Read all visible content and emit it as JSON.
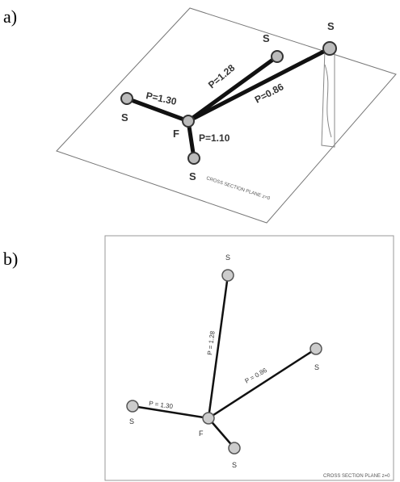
{
  "panels": [
    {
      "label": "a)",
      "nodes": [
        {
          "label": "F"
        },
        {
          "label": "S"
        },
        {
          "label": "S"
        },
        {
          "label": "S"
        },
        {
          "label": "S"
        }
      ],
      "edges": [
        {
          "label": "P=1.30"
        },
        {
          "label": "P=1.28"
        },
        {
          "label": "P=0.86"
        },
        {
          "label": "P=1.10"
        }
      ],
      "plane_label": "CROSS SECTION PLANE z=0"
    },
    {
      "label": "b)",
      "nodes": [
        {
          "label": "F"
        },
        {
          "label": "S"
        },
        {
          "label": "S"
        },
        {
          "label": "S"
        },
        {
          "label": "S"
        }
      ],
      "edges": [
        {
          "label": "P = 1.30"
        },
        {
          "label": "P = 1.28"
        },
        {
          "label": "P = 0.86"
        }
      ],
      "plane_label": "CROSS SECTION PLANE z=0"
    }
  ]
}
